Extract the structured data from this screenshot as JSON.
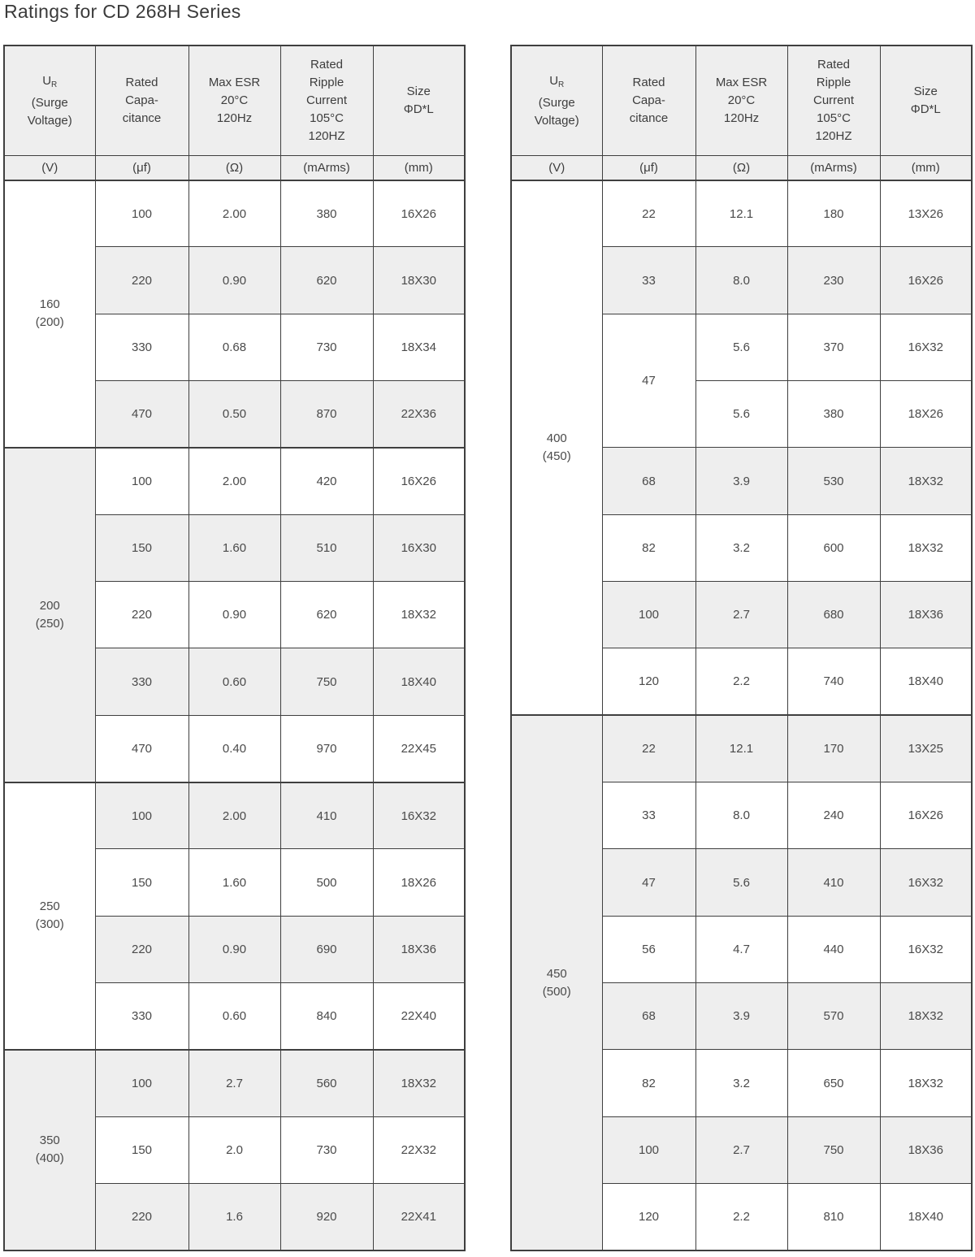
{
  "title": "Ratings for CD 268H  Series",
  "colors": {
    "row_shade": "#eeeeee",
    "border": "#3f3f3f",
    "text": "#4a4a4a"
  },
  "columns": {
    "voltage": {
      "base": "U",
      "sub": "R",
      "lines": [
        "(Surge",
        "Voltage)"
      ],
      "unit": "(V)"
    },
    "capacitance": {
      "lines": [
        "Rated",
        "Capa-",
        "citance"
      ],
      "unit": "(μf)"
    },
    "esr": {
      "lines": [
        "Max ESR",
        "20°C",
        "120Hz"
      ],
      "unit": "(Ω)"
    },
    "ripple": {
      "lines": [
        "Rated",
        "Ripple",
        "Current",
        "105°C",
        "120HZ"
      ],
      "unit": "(mArms)"
    },
    "size": {
      "lines": [
        "Size",
        "ΦD*L"
      ],
      "unit": "(mm)"
    }
  },
  "tables": [
    {
      "name": "left",
      "groups": [
        {
          "voltage": [
            "160",
            "(200)"
          ],
          "shaded": false,
          "rows": [
            {
              "cap": "100",
              "shaded": false,
              "variants": [
                [
                  "2.00",
                  "380",
                  "16X26"
                ]
              ]
            },
            {
              "cap": "220",
              "shaded": true,
              "variants": [
                [
                  "0.90",
                  "620",
                  "18X30"
                ]
              ]
            },
            {
              "cap": "330",
              "shaded": false,
              "variants": [
                [
                  "0.68",
                  "730",
                  "18X34"
                ]
              ]
            },
            {
              "cap": "470",
              "shaded": true,
              "variants": [
                [
                  "0.50",
                  "870",
                  "22X36"
                ]
              ]
            }
          ]
        },
        {
          "voltage": [
            "200",
            "(250)"
          ],
          "shaded": true,
          "rows": [
            {
              "cap": "100",
              "shaded": false,
              "variants": [
                [
                  "2.00",
                  "420",
                  "16X26"
                ]
              ]
            },
            {
              "cap": "150",
              "shaded": true,
              "variants": [
                [
                  "1.60",
                  "510",
                  "16X30"
                ]
              ]
            },
            {
              "cap": "220",
              "shaded": false,
              "variants": [
                [
                  "0.90",
                  "620",
                  "18X32"
                ]
              ]
            },
            {
              "cap": "330",
              "shaded": true,
              "variants": [
                [
                  "0.60",
                  "750",
                  "18X40"
                ]
              ]
            },
            {
              "cap": "470",
              "shaded": false,
              "variants": [
                [
                  "0.40",
                  "970",
                  "22X45"
                ]
              ]
            }
          ]
        },
        {
          "voltage": [
            "250",
            "(300)"
          ],
          "shaded": false,
          "rows": [
            {
              "cap": "100",
              "shaded": true,
              "variants": [
                [
                  "2.00",
                  "410",
                  "16X32"
                ]
              ]
            },
            {
              "cap": "150",
              "shaded": false,
              "variants": [
                [
                  "1.60",
                  "500",
                  "18X26"
                ]
              ]
            },
            {
              "cap": "220",
              "shaded": true,
              "variants": [
                [
                  "0.90",
                  "690",
                  "18X36"
                ]
              ]
            },
            {
              "cap": "330",
              "shaded": false,
              "variants": [
                [
                  "0.60",
                  "840",
                  "22X40"
                ]
              ]
            }
          ]
        },
        {
          "voltage": [
            "350",
            "(400)"
          ],
          "shaded": true,
          "rows": [
            {
              "cap": "100",
              "shaded": true,
              "variants": [
                [
                  "2.7",
                  "560",
                  "18X32"
                ]
              ]
            },
            {
              "cap": "150",
              "shaded": false,
              "variants": [
                [
                  "2.0",
                  "730",
                  "22X32"
                ]
              ]
            },
            {
              "cap": "220",
              "shaded": true,
              "variants": [
                [
                  "1.6",
                  "920",
                  "22X41"
                ]
              ]
            }
          ]
        }
      ]
    },
    {
      "name": "right",
      "groups": [
        {
          "voltage": [
            "400",
            "(450)"
          ],
          "shaded": false,
          "rows": [
            {
              "cap": "22",
              "shaded": false,
              "variants": [
                [
                  "12.1",
                  "180",
                  "13X26"
                ]
              ]
            },
            {
              "cap": "33",
              "shaded": true,
              "variants": [
                [
                  "8.0",
                  "230",
                  "16X26"
                ]
              ]
            },
            {
              "cap": "47",
              "shaded": false,
              "variants": [
                [
                  "5.6",
                  "370",
                  "16X32"
                ],
                [
                  "5.6",
                  "380",
                  "18X26"
                ]
              ]
            },
            {
              "cap": "68",
              "shaded": true,
              "variants": [
                [
                  "3.9",
                  "530",
                  "18X32"
                ]
              ]
            },
            {
              "cap": "82",
              "shaded": false,
              "variants": [
                [
                  "3.2",
                  "600",
                  "18X32"
                ]
              ]
            },
            {
              "cap": "100",
              "shaded": true,
              "variants": [
                [
                  "2.7",
                  "680",
                  "18X36"
                ]
              ]
            },
            {
              "cap": "120",
              "shaded": false,
              "variants": [
                [
                  "2.2",
                  "740",
                  "18X40"
                ]
              ]
            }
          ]
        },
        {
          "voltage": [
            "450",
            "(500)"
          ],
          "shaded": true,
          "rows": [
            {
              "cap": "22",
              "shaded": true,
              "variants": [
                [
                  "12.1",
                  "170",
                  "13X25"
                ]
              ]
            },
            {
              "cap": "33",
              "shaded": false,
              "variants": [
                [
                  "8.0",
                  "240",
                  "16X26"
                ]
              ]
            },
            {
              "cap": "47",
              "shaded": true,
              "variants": [
                [
                  "5.6",
                  "410",
                  "16X32"
                ]
              ]
            },
            {
              "cap": "56",
              "shaded": false,
              "variants": [
                [
                  "4.7",
                  "440",
                  "16X32"
                ]
              ]
            },
            {
              "cap": "68",
              "shaded": true,
              "variants": [
                [
                  "3.9",
                  "570",
                  "18X32"
                ]
              ]
            },
            {
              "cap": "82",
              "shaded": false,
              "variants": [
                [
                  "3.2",
                  "650",
                  "18X32"
                ]
              ]
            },
            {
              "cap": "100",
              "shaded": true,
              "variants": [
                [
                  "2.7",
                  "750",
                  "18X36"
                ]
              ]
            },
            {
              "cap": "120",
              "shaded": false,
              "variants": [
                [
                  "2.2",
                  "810",
                  "18X40"
                ]
              ]
            }
          ]
        }
      ]
    }
  ]
}
